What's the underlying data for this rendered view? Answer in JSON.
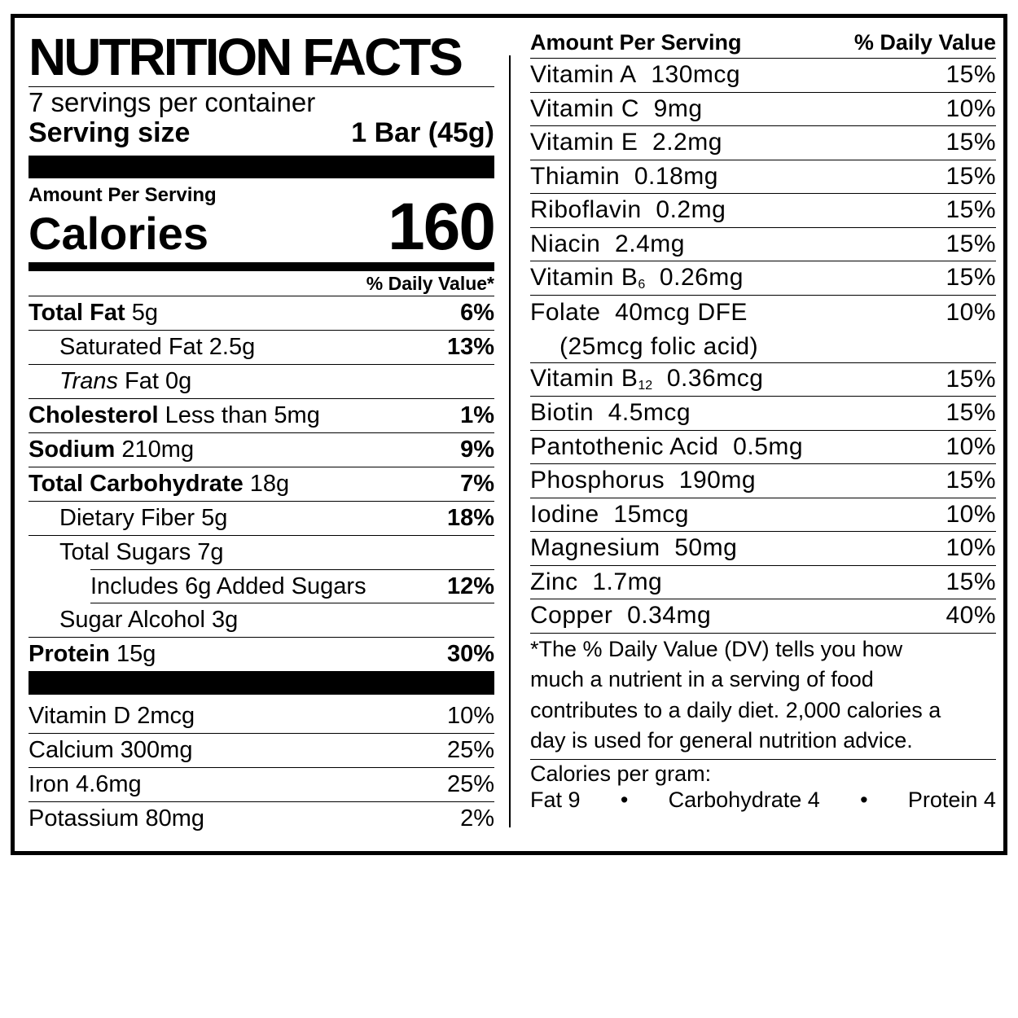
{
  "title": "NUTRITION FACTS",
  "servings_per_container": "7 servings per container",
  "serving_size_label": "Serving size",
  "serving_size_value": "1 Bar (45g)",
  "amount_per_serving": "Amount Per Serving",
  "calories_label": "Calories",
  "calories_value": "160",
  "daily_value_header": "% Daily Value*",
  "nutrients": [
    {
      "name": "Total Fat",
      "amount": "5g",
      "dv": "6%"
    },
    {
      "name": "Saturated Fat",
      "amount": "2.5g",
      "dv": "13%"
    },
    {
      "name": "Trans",
      "name_rest": "Fat",
      "amount": "0g",
      "dv": ""
    },
    {
      "name": "Cholesterol",
      "amount": "Less than 5mg",
      "dv": "1%"
    },
    {
      "name": "Sodium",
      "amount": "210mg",
      "dv": "9%"
    },
    {
      "name": "Total Carbohydrate",
      "amount": "18g",
      "dv": "7%"
    },
    {
      "name": "Dietary Fiber",
      "amount": "5g",
      "dv": "18%"
    },
    {
      "name": "Total Sugars",
      "amount": "7g",
      "dv": ""
    },
    {
      "name": "Includes 6g Added Sugars",
      "amount": "",
      "dv": "12%"
    },
    {
      "name": "Sugar Alcohol",
      "amount": "3g",
      "dv": ""
    },
    {
      "name": "Protein",
      "amount": "15g",
      "dv": "30%"
    }
  ],
  "vitamins_left": [
    {
      "label": "Vitamin D 2mcg",
      "dv": "10%"
    },
    {
      "label": "Calcium 300mg",
      "dv": "25%"
    },
    {
      "label": "Iron 4.6mg",
      "dv": "25%"
    },
    {
      "label": "Potassium 80mg",
      "dv": "2%"
    }
  ],
  "right_header_left": "Amount Per Serving",
  "right_header_right": "% Daily Value",
  "vitamins_right": [
    {
      "name": "Vitamin A",
      "amount": "130mcg",
      "dv": "15%"
    },
    {
      "name": "Vitamin C",
      "amount": "9mg",
      "dv": "10%"
    },
    {
      "name": "Vitamin E",
      "amount": "2.2mg",
      "dv": "15%"
    },
    {
      "name": "Thiamin",
      "amount": "0.18mg",
      "dv": "15%"
    },
    {
      "name": "Riboflavin",
      "amount": "0.2mg",
      "dv": "15%"
    },
    {
      "name": "Niacin",
      "amount": "2.4mg",
      "dv": "15%"
    },
    {
      "name": "Vitamin B",
      "sub": "6",
      "amount": "0.26mg",
      "dv": "15%"
    },
    {
      "name": "Folate",
      "amount": "40mcg DFE",
      "line2": "(25mcg folic acid)",
      "dv": "10%"
    },
    {
      "name": "Vitamin B",
      "sub": "12",
      "amount": "0.36mcg",
      "dv": "15%"
    },
    {
      "name": "Biotin",
      "amount": "4.5mcg",
      "dv": "15%"
    },
    {
      "name": "Pantothenic Acid",
      "amount": "0.5mg",
      "dv": "10%"
    },
    {
      "name": "Phosphorus",
      "amount": "190mg",
      "dv": "15%"
    },
    {
      "name": "Iodine",
      "amount": "15mcg",
      "dv": "10%"
    },
    {
      "name": "Magnesium",
      "amount": "50mg",
      "dv": "10%"
    },
    {
      "name": "Zinc",
      "amount": "1.7mg",
      "dv": "15%"
    },
    {
      "name": "Copper",
      "amount": "0.34mg",
      "dv": "40%"
    }
  ],
  "footnote": [
    "*The % Daily Value (DV) tells you how",
    "much a nutrient in a serving of food",
    "contributes to a daily diet. 2,000 calories a",
    "day is used for general nutrition advice."
  ],
  "calories_per_gram_label": "Calories per gram:",
  "calories_per_gram": {
    "fat": "Fat 9",
    "carb": "Carbohydrate 4",
    "protein": "Protein 4",
    "bullet": "•"
  }
}
